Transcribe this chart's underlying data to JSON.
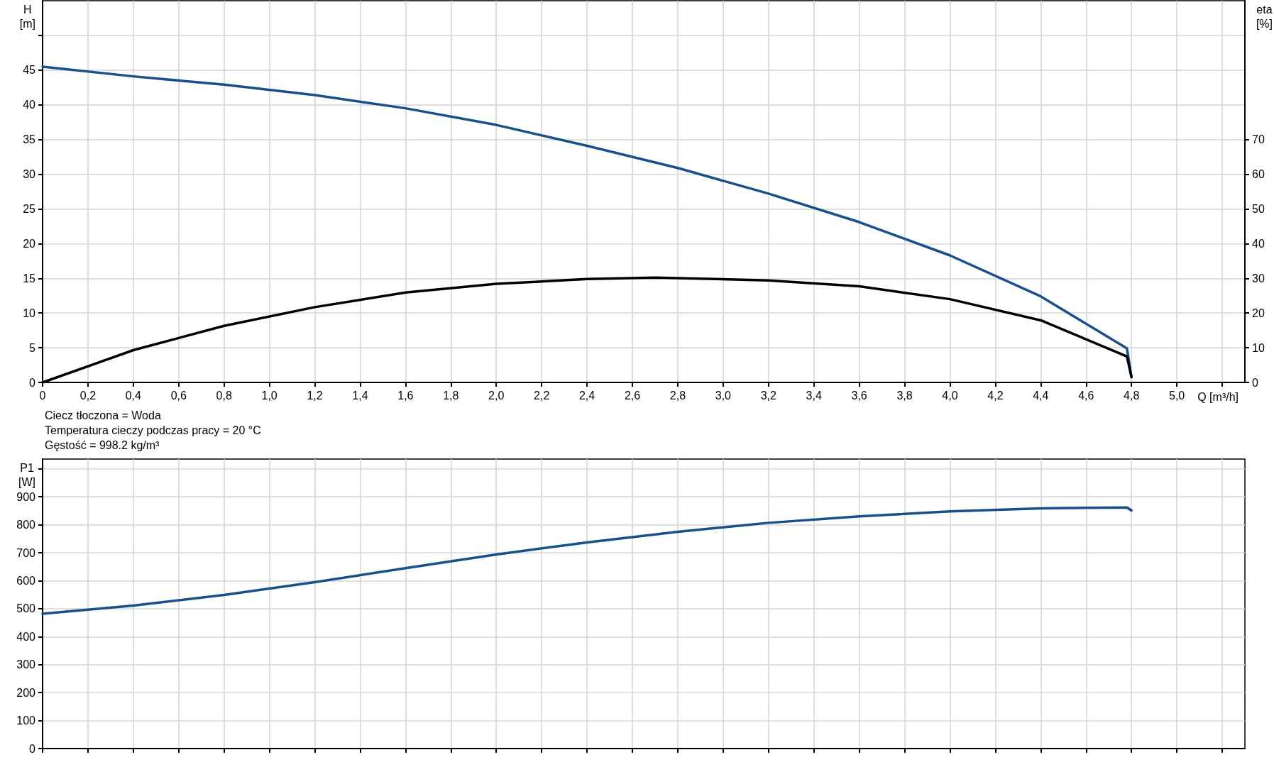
{
  "chart_data": [
    {
      "type": "line",
      "xlabel": "Q [m³/h]",
      "ylabel": "H\n[m]",
      "y2label": "eta\n[%]",
      "annotations": [
        "Ciecz tłoczona = Woda",
        "Temperatura cieczy podczas pracy = 20 °C",
        "Gęstość = 998.2 kg/m³"
      ],
      "xlim": [
        0,
        5.3
      ],
      "xticks": [
        0,
        {
          "value": 0.2,
          "label": "0,2"
        },
        {
          "value": 0.4,
          "label": "0,4"
        },
        {
          "value": 0.6,
          "label": "0,6"
        },
        {
          "value": 0.8,
          "label": "0,8"
        },
        {
          "value": 1.0,
          "label": "1,0"
        },
        {
          "value": 1.2,
          "label": "1,2"
        },
        {
          "value": 1.4,
          "label": "1,4"
        },
        {
          "value": 1.6,
          "label": "1,6"
        },
        {
          "value": 1.8,
          "label": "1,8"
        },
        {
          "value": 2.0,
          "label": "2,0"
        },
        {
          "value": 2.2,
          "label": "2,2"
        },
        {
          "value": 2.4,
          "label": "2,4"
        },
        {
          "value": 2.6,
          "label": "2,6"
        },
        {
          "value": 2.8,
          "label": "2,8"
        },
        {
          "value": 3.0,
          "label": "3,0"
        },
        {
          "value": 3.2,
          "label": "3,2"
        },
        {
          "value": 3.4,
          "label": "3,4"
        },
        {
          "value": 3.6,
          "label": "3,6"
        },
        {
          "value": 3.8,
          "label": "3,8"
        },
        {
          "value": 4.0,
          "label": "4,0"
        },
        {
          "value": 4.2,
          "label": "4,2"
        },
        {
          "value": 4.4,
          "label": "4,4"
        },
        {
          "value": 4.6,
          "label": "4,6"
        },
        {
          "value": 4.8,
          "label": "4,8"
        },
        {
          "value": 5.0,
          "label": "5,0"
        },
        {
          "value": 5.2,
          "label": null
        }
      ],
      "ylim": [
        0,
        55
      ],
      "yticks": [
        0,
        5,
        10,
        15,
        20,
        25,
        30,
        35,
        40,
        45,
        {
          "value": 50,
          "label": null
        }
      ],
      "y2lim": [
        0,
        110
      ],
      "y2ticks": [
        0,
        10,
        20,
        30,
        40,
        50,
        60,
        70
      ],
      "grid": true,
      "series": [
        {
          "color": "#1a4f8b",
          "x": [
            0,
            0.4,
            0.8,
            1.2,
            1.6,
            2.0,
            2.4,
            2.8,
            3.2,
            3.6,
            4.0,
            4.4,
            4.78,
            4.8
          ],
          "values": [
            45.5,
            44.1,
            42.9,
            41.4,
            39.5,
            37.1,
            34.1,
            30.9,
            27.2,
            23.1,
            18.3,
            12.4,
            4.9,
            0.8
          ]
        },
        {
          "color": "#000000",
          "axis": "y2",
          "x": [
            0,
            0.4,
            0.8,
            1.2,
            1.6,
            2.0,
            2.4,
            2.7,
            3.2,
            3.6,
            4.0,
            4.4,
            4.78,
            4.8
          ],
          "values": [
            0,
            9.3,
            16.3,
            21.7,
            25.9,
            28.4,
            29.8,
            30.2,
            29.4,
            27.7,
            24.0,
            17.9,
            7.5,
            1.5
          ]
        }
      ]
    },
    {
      "type": "line",
      "ylabel": "P1\n[W]",
      "xlim": [
        0,
        5.3
      ],
      "xticks": [
        0,
        0.2,
        0.4,
        0.6,
        0.8,
        1.0,
        1.2,
        1.4,
        1.6,
        1.8,
        2.0,
        2.2,
        2.4,
        2.6,
        2.8,
        3.0,
        3.2,
        3.4,
        3.6,
        3.8,
        4.0,
        4.2,
        4.4,
        4.6,
        4.8,
        5.0,
        5.2
      ],
      "ylim": [
        0,
        1035
      ],
      "yticks": [
        0,
        100,
        200,
        300,
        400,
        500,
        600,
        700,
        800,
        900,
        {
          "value": 1000,
          "label": null
        }
      ],
      "tick_labels": "y",
      "grid": true,
      "series": [
        {
          "color": "#1a4f8b",
          "x": [
            0,
            0.4,
            0.8,
            1.2,
            1.6,
            2.0,
            2.4,
            2.8,
            3.2,
            3.6,
            4.0,
            4.4,
            4.78,
            4.8
          ],
          "values": [
            482,
            511,
            549,
            595,
            645,
            694,
            737,
            775,
            807,
            830,
            848,
            859,
            862,
            851
          ]
        }
      ]
    }
  ]
}
